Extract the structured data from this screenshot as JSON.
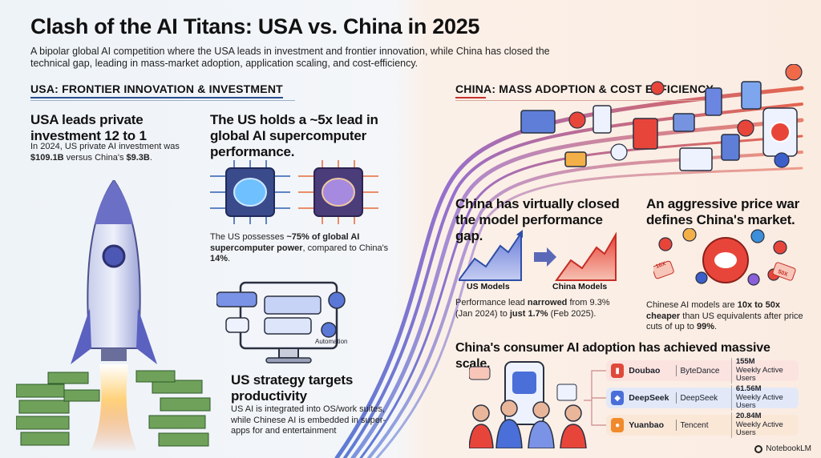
{
  "header": {
    "title": "Clash of the AI Titans: USA vs. China in 2025",
    "subtitle": "A bipolar global AI competition where the USA leads in investment and frontier innovation, while China has closed the technical gap, leading in mass-market adoption, application scaling, and cost-efficiency."
  },
  "usa": {
    "section_title": "USA: FRONTIER INNOVATION & INVESTMENT",
    "investment": {
      "heading": "USA leads private investment 12 to 1",
      "text_pre": "In 2024, US private AI investment was ",
      "us_amount": "$109.1B",
      "text_mid": " versus China's ",
      "cn_amount": "$9.3B",
      "text_post": "."
    },
    "compute": {
      "heading": "The US holds a ~5x lead in global AI supercomputer performance.",
      "text_pre": "The US possesses ",
      "bold": "~75% of global AI supercomputer power",
      "text_mid": ", compared to China's ",
      "cn_share": "14%",
      "text_post": "."
    },
    "strategy": {
      "heading": "US strategy targets productivity",
      "text": "US AI is integrated into OS/work suites, while Chinese AI is embedded in super-apps for and entertainment",
      "automation_label": "Automation"
    }
  },
  "china": {
    "section_title": "CHINA: MASS ADOPTION & COST EFFICIENCY",
    "performance": {
      "heading": "China has virtually closed the model performance gap.",
      "label_us": "US Models",
      "label_cn": "China Models",
      "text_pre": "Performance lead ",
      "bold1": "narrowed",
      "text_mid": " from 9.3% (Jan 2024) to ",
      "bold2": "just 1.7%",
      "text_post": " (Feb 2025)."
    },
    "price": {
      "heading": "An aggressive price war defines China's market.",
      "text_pre": "Chinese AI models are ",
      "bold": "10x to 50x cheaper",
      "text_mid": " than US equivalents after price cuts of up to ",
      "bold2": "99%",
      "text_post": ".",
      "tag_left": "10X",
      "tag_right": "50X"
    },
    "adoption": {
      "heading": "China's consumer AI adoption has achieved massive scale.",
      "apps": [
        {
          "name": "Doubao",
          "company": "ByteDance",
          "users": "155M",
          "metric": "Weekly Active Users",
          "color": "#e0483a"
        },
        {
          "name": "DeepSeek",
          "company": "DeepSeek",
          "users": "61.56M",
          "metric": "Weekly Active Users",
          "color": "#4a6fd8"
        },
        {
          "name": "Yuanbao",
          "company": "Tencent",
          "users": "20.84M",
          "metric": "Weekly Active Users",
          "color": "#f08a2c"
        }
      ]
    }
  },
  "brand": "NotebookLM",
  "colors": {
    "usa_accent": "#2a4f8f",
    "china_accent": "#c8322c"
  }
}
